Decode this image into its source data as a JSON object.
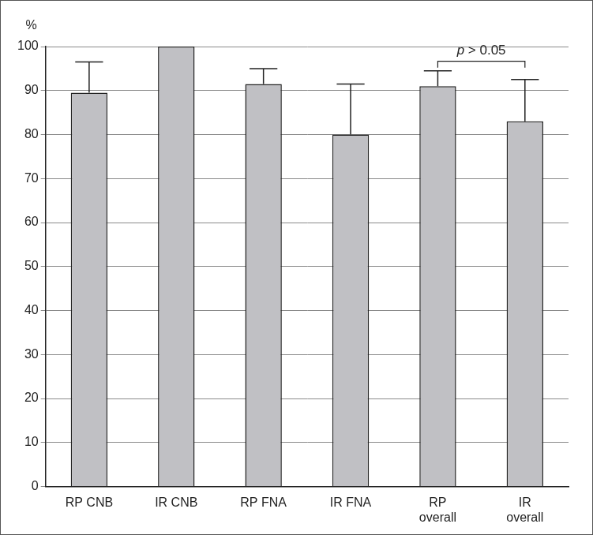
{
  "chart_data": {
    "type": "bar",
    "categories": [
      "RP CNB",
      "IR CNB",
      "RP FNA",
      "IR FNA",
      "RP\noverall",
      "IR\noverall"
    ],
    "values": [
      89.5,
      100,
      91.5,
      80,
      91,
      83
    ],
    "errors": [
      7,
      null,
      3.5,
      11.5,
      3.5,
      9.5
    ],
    "color": "#c0c0c4",
    "y_label": "%",
    "ylim": [
      0,
      100
    ],
    "yticks": [
      0,
      10,
      20,
      30,
      40,
      50,
      60,
      70,
      80,
      90,
      100
    ],
    "grid": true,
    "annotations": [
      {
        "text": "p > 0.05",
        "from": "RP\noverall",
        "to": "IR\noverall"
      }
    ]
  }
}
